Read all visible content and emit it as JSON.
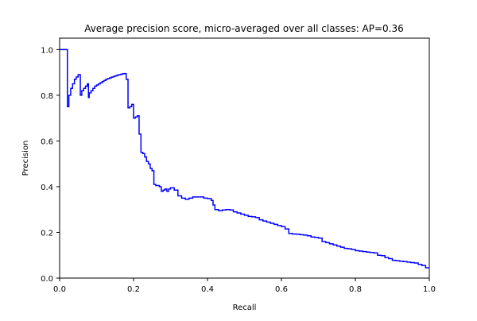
{
  "chart_data": {
    "type": "line",
    "title": "Average precision score, micro-averaged over all classes: AP=0.36",
    "xlabel": "Recall",
    "ylabel": "Precision",
    "xlim": [
      0.0,
      1.0
    ],
    "ylim": [
      0.0,
      1.05
    ],
    "xticks": [
      "0.0",
      "0.2",
      "0.4",
      "0.6",
      "0.8",
      "1.0"
    ],
    "yticks": [
      "0.0",
      "0.2",
      "0.4",
      "0.6",
      "0.8",
      "1.0"
    ],
    "grid": false,
    "series_color": "#0000ff",
    "step": true,
    "x": [
      0.0,
      0.021,
      0.021,
      0.025,
      0.03,
      0.035,
      0.04,
      0.045,
      0.05,
      0.055,
      0.056,
      0.06,
      0.065,
      0.07,
      0.075,
      0.078,
      0.08,
      0.085,
      0.09,
      0.095,
      0.1,
      0.105,
      0.11,
      0.115,
      0.12,
      0.125,
      0.13,
      0.135,
      0.14,
      0.145,
      0.15,
      0.155,
      0.16,
      0.165,
      0.17,
      0.175,
      0.18,
      0.185,
      0.19,
      0.195,
      0.2,
      0.205,
      0.21,
      0.215,
      0.22,
      0.225,
      0.23,
      0.235,
      0.24,
      0.245,
      0.25,
      0.255,
      0.26,
      0.265,
      0.27,
      0.275,
      0.28,
      0.285,
      0.29,
      0.295,
      0.3,
      0.305,
      0.31,
      0.315,
      0.32,
      0.33,
      0.34,
      0.35,
      0.36,
      0.37,
      0.38,
      0.39,
      0.4,
      0.41,
      0.415,
      0.42,
      0.43,
      0.44,
      0.45,
      0.46,
      0.47,
      0.48,
      0.49,
      0.5,
      0.51,
      0.52,
      0.53,
      0.54,
      0.55,
      0.56,
      0.57,
      0.58,
      0.59,
      0.6,
      0.61,
      0.62,
      0.63,
      0.64,
      0.65,
      0.66,
      0.67,
      0.68,
      0.69,
      0.7,
      0.71,
      0.72,
      0.73,
      0.74,
      0.75,
      0.76,
      0.77,
      0.78,
      0.79,
      0.8,
      0.81,
      0.82,
      0.83,
      0.84,
      0.85,
      0.86,
      0.87,
      0.88,
      0.89,
      0.9,
      0.91,
      0.92,
      0.93,
      0.94,
      0.95,
      0.96,
      0.97,
      0.98,
      0.99,
      1.0
    ],
    "y": [
      1.0,
      1.0,
      0.75,
      0.8,
      0.83,
      0.85,
      0.87,
      0.88,
      0.89,
      0.89,
      0.8,
      0.82,
      0.83,
      0.84,
      0.85,
      0.79,
      0.81,
      0.82,
      0.83,
      0.84,
      0.845,
      0.85,
      0.855,
      0.86,
      0.865,
      0.87,
      0.873,
      0.876,
      0.879,
      0.882,
      0.885,
      0.888,
      0.89,
      0.892,
      0.894,
      0.895,
      0.87,
      0.745,
      0.75,
      0.76,
      0.7,
      0.705,
      0.71,
      0.63,
      0.55,
      0.545,
      0.53,
      0.51,
      0.5,
      0.48,
      0.47,
      0.41,
      0.405,
      0.405,
      0.4,
      0.38,
      0.385,
      0.39,
      0.38,
      0.39,
      0.395,
      0.395,
      0.385,
      0.385,
      0.36,
      0.35,
      0.345,
      0.35,
      0.355,
      0.355,
      0.355,
      0.35,
      0.348,
      0.34,
      0.32,
      0.3,
      0.295,
      0.298,
      0.3,
      0.298,
      0.29,
      0.285,
      0.28,
      0.275,
      0.27,
      0.268,
      0.265,
      0.255,
      0.25,
      0.245,
      0.24,
      0.235,
      0.23,
      0.225,
      0.215,
      0.195,
      0.193,
      0.192,
      0.19,
      0.188,
      0.185,
      0.18,
      0.178,
      0.175,
      0.16,
      0.155,
      0.15,
      0.145,
      0.14,
      0.135,
      0.13,
      0.128,
      0.125,
      0.12,
      0.118,
      0.116,
      0.114,
      0.112,
      0.11,
      0.1,
      0.098,
      0.09,
      0.085,
      0.078,
      0.076,
      0.074,
      0.072,
      0.07,
      0.068,
      0.066,
      0.06,
      0.055,
      0.045,
      0.045
    ]
  }
}
